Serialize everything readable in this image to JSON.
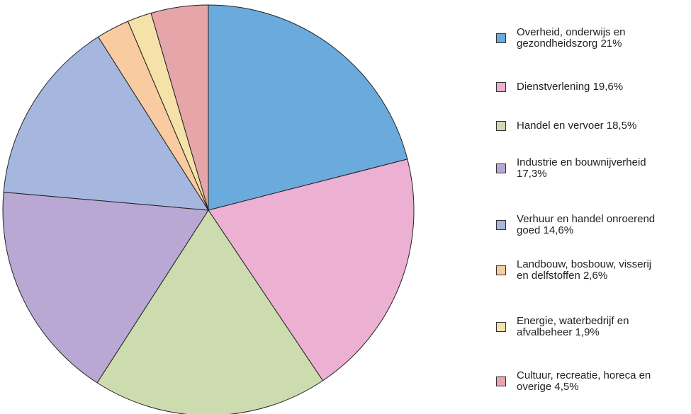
{
  "chart_data": {
    "type": "pie",
    "categories": [
      "Overheid, onderwijs en gezondheidszorg",
      "Dienstverlening",
      "Handel en vervoer",
      "Industrie en bouwnijverheid",
      "Verhuur en handel onroerend goed",
      "Landbouw, bosbouw, visserij en delfstoffen",
      "Energie, waterbedrijf en afvalbeheer",
      "Cultuur, recreatie, horeca en overige"
    ],
    "values": [
      21,
      19.6,
      18.5,
      17.3,
      14.6,
      2.6,
      1.9,
      4.5
    ],
    "value_labels": [
      "21%",
      "19,6%",
      "18,5%",
      "17,3%",
      "14,6%",
      "2,6%",
      "1,9%",
      "4,5%"
    ],
    "colors": [
      "#6aaadc",
      "#ebb0d2",
      "#cddcae",
      "#b8a8d3",
      "#a6b7df",
      "#f8cba0",
      "#f5e2a8",
      "#e6a5a8"
    ],
    "legend": "right"
  }
}
